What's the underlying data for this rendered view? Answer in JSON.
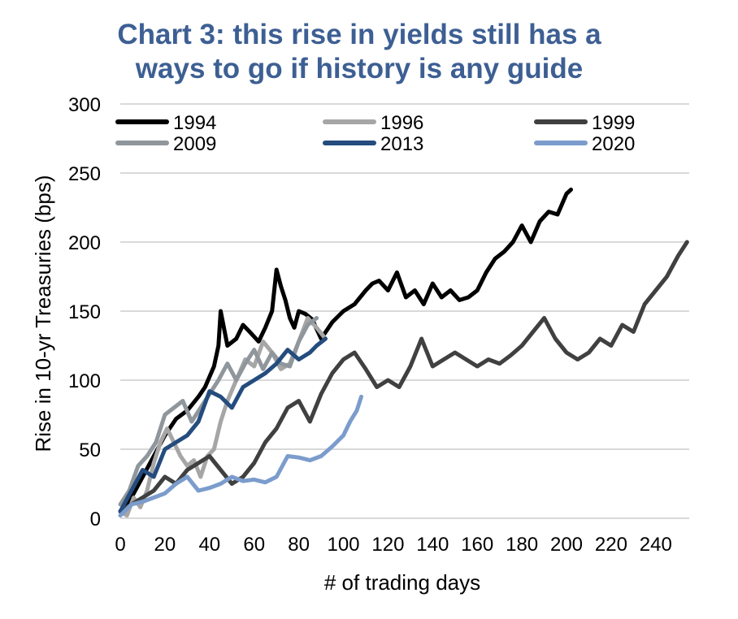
{
  "chart_data": {
    "type": "line",
    "title_lines": [
      "Chart 3: this rise in yields still has a",
      "ways to go if history is any guide"
    ],
    "xlabel": "# of trading days",
    "ylabel": "Rise in 10-yr Treasuries (bps)",
    "xlim": [
      0,
      255
    ],
    "ylim": [
      0,
      300
    ],
    "xticks": [
      0,
      20,
      40,
      60,
      80,
      100,
      120,
      140,
      160,
      180,
      200,
      220,
      240
    ],
    "yticks": [
      0,
      50,
      100,
      150,
      200,
      250,
      300
    ],
    "grid": "horizontal",
    "legend_position": "top",
    "colors": {
      "title": "#3d5f93",
      "grid": "#d9d9d9"
    },
    "series": [
      {
        "name": "1994",
        "color": "#000000",
        "x": [
          0,
          5,
          10,
          15,
          20,
          25,
          30,
          35,
          38,
          42,
          44,
          45,
          48,
          52,
          55,
          58,
          62,
          65,
          68,
          70,
          72,
          74,
          76,
          78,
          80,
          83,
          86,
          90,
          95,
          100,
          105,
          110,
          113,
          116,
          120,
          124,
          128,
          132,
          136,
          140,
          144,
          148,
          152,
          156,
          160,
          164,
          168,
          172,
          176,
          180,
          184,
          188,
          192,
          196,
          200,
          202
        ],
        "y": [
          5,
          15,
          30,
          45,
          60,
          72,
          78,
          88,
          95,
          110,
          125,
          150,
          125,
          130,
          140,
          135,
          128,
          138,
          150,
          180,
          168,
          158,
          145,
          138,
          150,
          148,
          144,
          130,
          142,
          150,
          155,
          165,
          170,
          172,
          165,
          178,
          160,
          165,
          155,
          170,
          160,
          165,
          158,
          160,
          165,
          178,
          188,
          193,
          200,
          212,
          200,
          215,
          222,
          220,
          235,
          238
        ]
      },
      {
        "name": "1996",
        "color": "#a6a6a6",
        "x": [
          0,
          3,
          6,
          9,
          12,
          15,
          18,
          21,
          24,
          27,
          30,
          33,
          36,
          39,
          42,
          45,
          48,
          52,
          56,
          60,
          64,
          68,
          72,
          76,
          80,
          84,
          88,
          92
        ],
        "y": [
          5,
          2,
          15,
          8,
          20,
          40,
          55,
          65,
          55,
          45,
          38,
          42,
          30,
          45,
          50,
          70,
          85,
          100,
          115,
          110,
          128,
          120,
          108,
          112,
          128,
          145,
          138,
          130
        ]
      },
      {
        "name": "1999",
        "color": "#404040",
        "x": [
          0,
          5,
          10,
          15,
          20,
          25,
          30,
          35,
          40,
          45,
          50,
          55,
          60,
          65,
          70,
          75,
          80,
          85,
          90,
          95,
          100,
          105,
          110,
          115,
          120,
          125,
          130,
          135,
          140,
          145,
          150,
          155,
          160,
          165,
          170,
          175,
          180,
          185,
          190,
          195,
          200,
          205,
          210,
          215,
          220,
          225,
          230,
          235,
          240,
          245,
          250,
          254
        ],
        "y": [
          5,
          10,
          15,
          20,
          30,
          25,
          35,
          40,
          45,
          35,
          25,
          30,
          40,
          55,
          65,
          80,
          85,
          70,
          90,
          105,
          115,
          120,
          108,
          95,
          100,
          95,
          110,
          130,
          110,
          115,
          120,
          115,
          110,
          115,
          112,
          118,
          125,
          135,
          145,
          130,
          120,
          115,
          120,
          130,
          125,
          140,
          135,
          155,
          165,
          175,
          190,
          200
        ]
      },
      {
        "name": "2009",
        "color": "#8f969c",
        "x": [
          0,
          4,
          8,
          12,
          16,
          20,
          24,
          28,
          32,
          36,
          40,
          44,
          48,
          52,
          56,
          60,
          64,
          68,
          72,
          76,
          80,
          84,
          88
        ],
        "y": [
          10,
          20,
          38,
          45,
          55,
          75,
          80,
          85,
          70,
          80,
          90,
          100,
          112,
          100,
          112,
          122,
          108,
          120,
          112,
          110,
          128,
          140,
          145
        ]
      },
      {
        "name": "2013",
        "color": "#244c7e",
        "x": [
          0,
          5,
          10,
          15,
          20,
          25,
          30,
          35,
          40,
          45,
          50,
          55,
          60,
          65,
          70,
          75,
          80,
          85,
          88,
          92
        ],
        "y": [
          5,
          20,
          35,
          30,
          50,
          55,
          60,
          70,
          92,
          88,
          80,
          95,
          100,
          105,
          112,
          122,
          115,
          120,
          125,
          130
        ]
      },
      {
        "name": "2020",
        "color": "#7b9ccc",
        "x": [
          0,
          5,
          10,
          15,
          20,
          25,
          30,
          35,
          40,
          45,
          50,
          55,
          60,
          65,
          70,
          75,
          80,
          85,
          90,
          95,
          100,
          103,
          106,
          108
        ],
        "y": [
          2,
          10,
          12,
          15,
          18,
          25,
          30,
          20,
          22,
          25,
          30,
          27,
          28,
          26,
          30,
          45,
          44,
          42,
          45,
          52,
          60,
          70,
          78,
          88
        ]
      }
    ]
  }
}
